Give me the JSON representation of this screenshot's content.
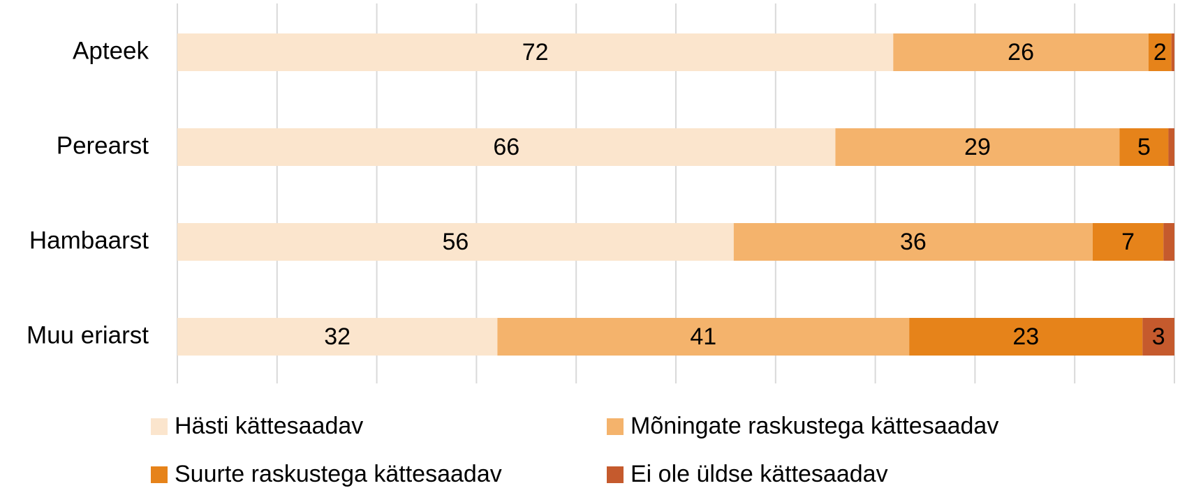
{
  "chart_data": {
    "type": "stacked_bar_horizontal",
    "categories": [
      "Apteek",
      "Perearst",
      "Hambaarst",
      "Muu eriarst"
    ],
    "series": [
      {
        "name": "Hästi kättesaadav",
        "color": "#FBE5CD",
        "values": [
          71.8,
          66.0,
          55.8,
          32.1
        ],
        "value_labels": [
          "72",
          "66",
          "56",
          "32"
        ]
      },
      {
        "name": "Mõningate raskustega kättesaadav",
        "color": "#F4B36C",
        "values": [
          25.6,
          28.5,
          36.0,
          41.3
        ],
        "value_labels": [
          "26",
          "29",
          "36",
          "41"
        ]
      },
      {
        "name": "Suurte raskustega kättesaadav",
        "color": "#E6831A",
        "values": [
          2.3,
          4.9,
          7.1,
          23.4
        ],
        "value_labels": [
          "2",
          "5",
          "7",
          "23"
        ]
      },
      {
        "name": "Ei ole üldse kättesaadav",
        "color": "#C55A2D",
        "values": [
          0.3,
          0.6,
          1.1,
          3.2
        ],
        "value_labels": [
          null,
          null,
          null,
          "3"
        ]
      }
    ],
    "xlim": [
      0,
      100
    ],
    "xticks": [
      0,
      10,
      20,
      30,
      40,
      50,
      60,
      70,
      80,
      90,
      100
    ],
    "grid": true
  }
}
